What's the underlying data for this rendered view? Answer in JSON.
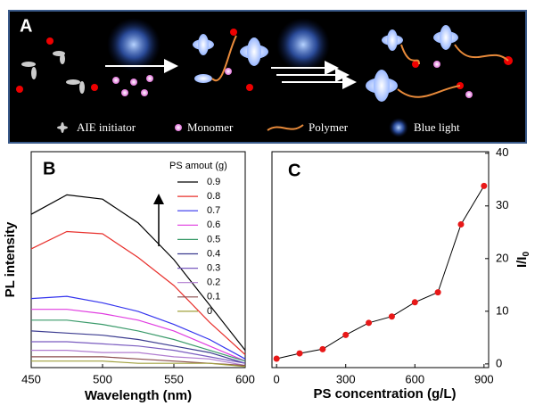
{
  "panel_a": {
    "label": "A",
    "legend": [
      "AIE initiator",
      "Monomer",
      "Polymer",
      "Blue light"
    ]
  },
  "chart_data": [
    {
      "type": "line",
      "title": "B",
      "x_label": "Wavelength (nm)",
      "y_label": "PL intensity",
      "legend_title": "PS amout (g)",
      "x": [
        450,
        475,
        500,
        525,
        550,
        575,
        600
      ],
      "xlim": [
        450,
        600
      ],
      "xticks": [
        450,
        500,
        550,
        600
      ],
      "ylim": [
        0,
        100
      ],
      "series": [
        {
          "name": "0.9",
          "color": "#000000",
          "values": [
            71,
            80,
            78,
            67,
            50,
            29,
            8
          ]
        },
        {
          "name": "0.8",
          "color": "#e8302c",
          "values": [
            55,
            63,
            62,
            51,
            38,
            21,
            6
          ]
        },
        {
          "name": "0.7",
          "color": "#3434ee",
          "values": [
            32,
            33,
            30,
            26,
            20,
            13,
            4
          ]
        },
        {
          "name": "0.6",
          "color": "#e03ce0",
          "values": [
            27,
            27,
            25,
            22,
            17,
            10,
            3
          ]
        },
        {
          "name": "0.5",
          "color": "#3a9a6a",
          "values": [
            22,
            22,
            20,
            17,
            13,
            8,
            3
          ]
        },
        {
          "name": "0.4",
          "color": "#3c3c90",
          "values": [
            17,
            16,
            15,
            13,
            10,
            7,
            2
          ]
        },
        {
          "name": "0.3",
          "color": "#7a5cc0",
          "values": [
            12,
            12,
            11,
            10,
            8,
            5,
            2
          ]
        },
        {
          "name": "0.2",
          "color": "#b07cd0",
          "values": [
            8,
            8,
            7,
            7,
            5,
            4,
            1
          ]
        },
        {
          "name": "0.1",
          "color": "#8a4c4c",
          "values": [
            5,
            5,
            5,
            4,
            3,
            2,
            1
          ]
        },
        {
          "name": "0",
          "color": "#a0a03c",
          "values": [
            3,
            3,
            3,
            2,
            2,
            2,
            0.5
          ]
        }
      ]
    },
    {
      "type": "scatter",
      "connect": true,
      "title": "C",
      "x_label": "PS concentration (g/L)",
      "y_label": "I/I",
      "y_label_sub": "0",
      "x": [
        0,
        100,
        200,
        300,
        400,
        500,
        600,
        700,
        800,
        900
      ],
      "values": [
        1,
        2,
        2.8,
        5.5,
        7.8,
        9,
        11.7,
        13.6,
        26.5,
        33.8
      ],
      "color": "#e81818",
      "xlim": [
        -20,
        920
      ],
      "xticks": [
        0,
        300,
        600,
        900
      ],
      "ylim": [
        -0.7,
        40.3
      ],
      "yticks": [
        0,
        10,
        20,
        30,
        40
      ]
    }
  ]
}
